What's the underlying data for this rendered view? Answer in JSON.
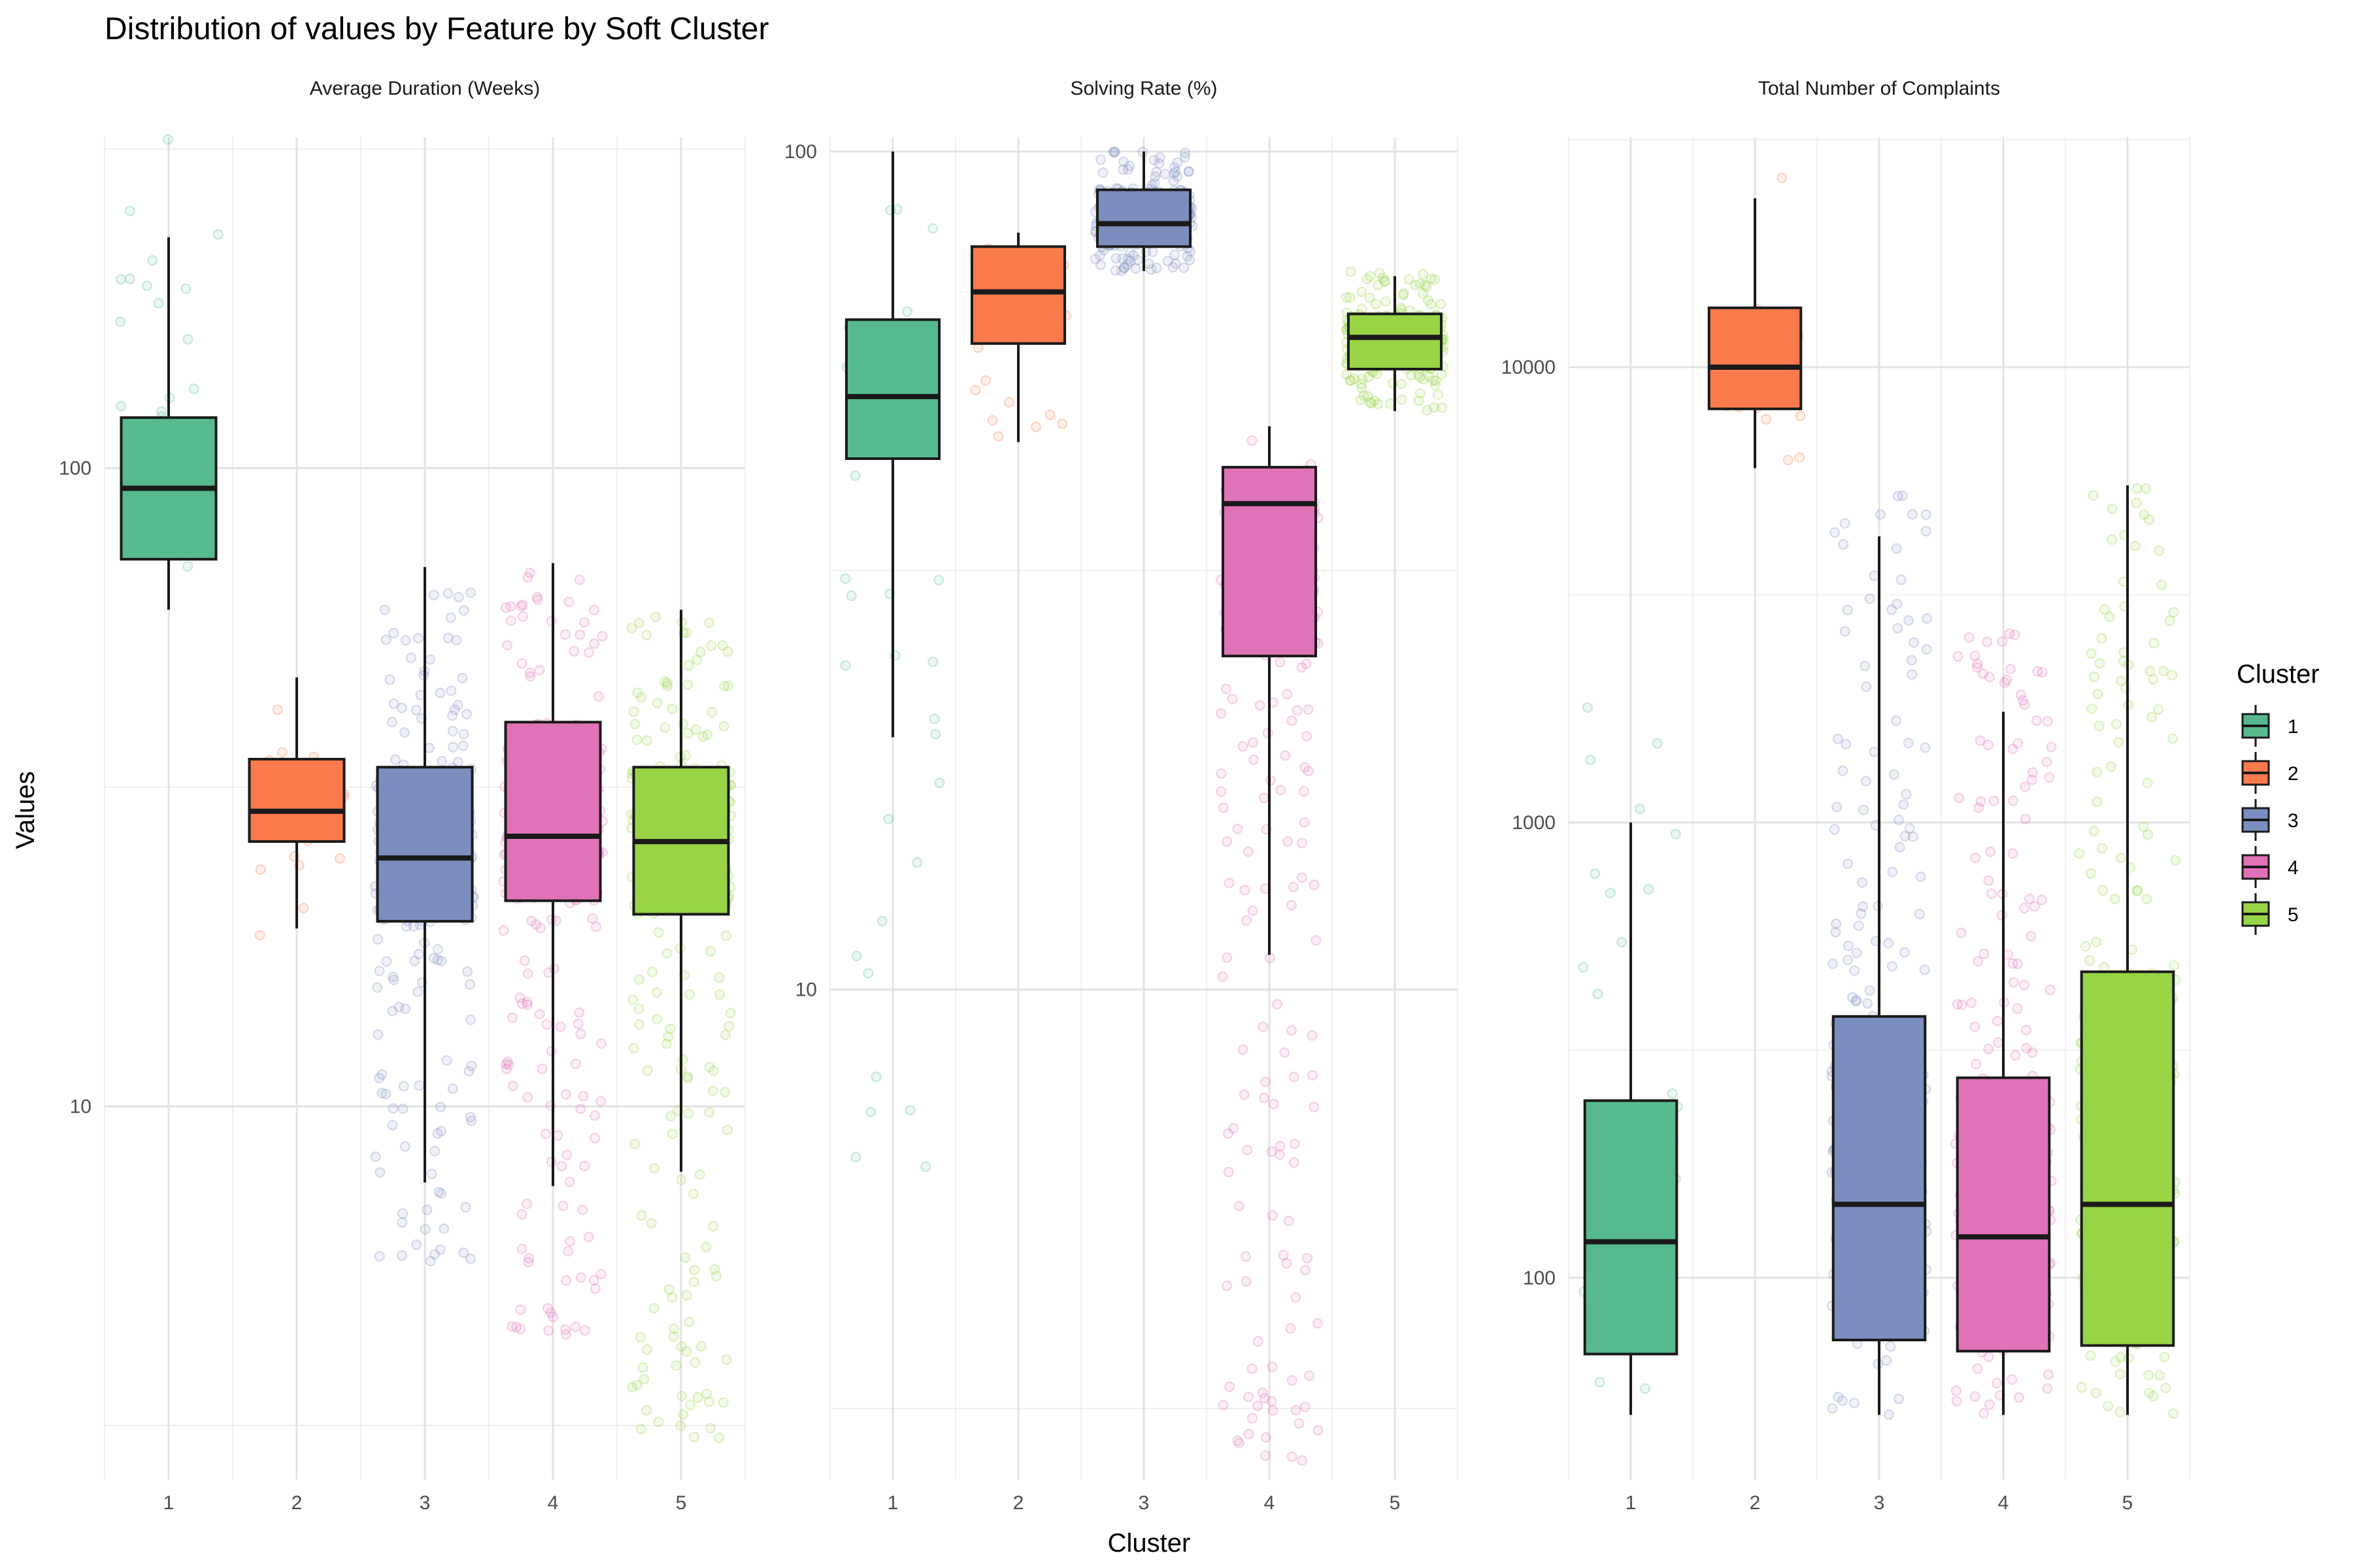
{
  "chart_data": {
    "type": "boxplot",
    "title": "Distribution of values by Feature by Soft Cluster",
    "xlabel": "Cluster",
    "ylabel": "Values",
    "categories": [
      "1",
      "2",
      "3",
      "4",
      "5"
    ],
    "y_scale": "log10",
    "grid": true,
    "legend": {
      "title": "Cluster",
      "position": "right",
      "entries": [
        "1",
        "2",
        "3",
        "4",
        "5"
      ]
    },
    "colors": [
      "#57BA8F",
      "#F97A4C",
      "#7C8DC0",
      "#E072B7",
      "#98D446"
    ],
    "facets": [
      {
        "name": "Average Duration (Weeks)",
        "ylim": [
          2.6,
          330
        ],
        "y_ticks": [
          10,
          100
        ],
        "y_tick_labels": [
          "10",
          "100"
        ],
        "boxes": [
          {
            "cluster": "1",
            "whisker_low": 60,
            "q1": 72,
            "median": 93,
            "q3": 120,
            "whisker_high": 230
          },
          {
            "cluster": "2",
            "whisker_low": 19,
            "q1": 26,
            "median": 29,
            "q3": 35,
            "whisker_high": 47
          },
          {
            "cluster": "3",
            "whisker_low": 7.6,
            "q1": 19.5,
            "median": 24.5,
            "q3": 34,
            "whisker_high": 70
          },
          {
            "cluster": "4",
            "whisker_low": 7.5,
            "q1": 21,
            "median": 26.5,
            "q3": 40,
            "whisker_high": 71
          },
          {
            "cluster": "5",
            "whisker_low": 7.9,
            "q1": 20,
            "median": 26,
            "q3": 34,
            "whisker_high": 60
          }
        ],
        "points": [
          {
            "cluster": "1",
            "n": 40,
            "min": 60,
            "max": 330
          },
          {
            "cluster": "2",
            "n": 30,
            "min": 18,
            "max": 48
          },
          {
            "cluster": "3",
            "n": 300,
            "min": 5.6,
            "max": 70
          },
          {
            "cluster": "4",
            "n": 300,
            "min": 4.3,
            "max": 71
          },
          {
            "cluster": "5",
            "n": 300,
            "min": 3,
            "max": 60
          }
        ]
      },
      {
        "name": "Solving Rate (%)",
        "ylim": [
          2.6,
          104
        ],
        "y_ticks": [
          10,
          100
        ],
        "y_tick_labels": [
          "10",
          "100"
        ],
        "boxes": [
          {
            "cluster": "1",
            "whisker_low": 20,
            "q1": 43,
            "median": 51,
            "q3": 63,
            "whisker_high": 100
          },
          {
            "cluster": "2",
            "whisker_low": 45,
            "q1": 59,
            "median": 68,
            "q3": 77,
            "whisker_high": 80
          },
          {
            "cluster": "3",
            "whisker_low": 72,
            "q1": 77,
            "median": 82,
            "q3": 90,
            "whisker_high": 100
          },
          {
            "cluster": "4",
            "whisker_low": 11,
            "q1": 25,
            "median": 38,
            "q3": 42,
            "whisker_high": 47
          },
          {
            "cluster": "5",
            "whisker_low": 49,
            "q1": 55,
            "median": 60,
            "q3": 64,
            "whisker_high": 71
          }
        ],
        "points": [
          {
            "cluster": "1",
            "n": 50,
            "min": 5.5,
            "max": 100
          },
          {
            "cluster": "2",
            "n": 25,
            "min": 42,
            "max": 80
          },
          {
            "cluster": "3",
            "n": 300,
            "min": 72,
            "max": 100
          },
          {
            "cluster": "4",
            "n": 300,
            "min": 2.7,
            "max": 47
          },
          {
            "cluster": "5",
            "n": 300,
            "min": 49,
            "max": 72
          }
        ]
      },
      {
        "name": "Total Number of Complaints",
        "ylim": [
          36,
          32000
        ],
        "y_ticks": [
          100,
          1000,
          10000
        ],
        "y_tick_labels": [
          "100",
          "1000",
          "10000"
        ],
        "boxes": [
          {
            "cluster": "1",
            "whisker_low": 50,
            "q1": 68,
            "median": 120,
            "q3": 245,
            "whisker_high": 1000
          },
          {
            "cluster": "2",
            "whisker_low": 6000,
            "q1": 8100,
            "median": 10000,
            "q3": 13500,
            "whisker_high": 23500
          },
          {
            "cluster": "3",
            "whisker_low": 50,
            "q1": 73,
            "median": 145,
            "q3": 375,
            "whisker_high": 4250
          },
          {
            "cluster": "4",
            "whisker_low": 50,
            "q1": 69,
            "median": 123,
            "q3": 275,
            "whisker_high": 1750
          },
          {
            "cluster": "5",
            "whisker_low": 50,
            "q1": 71,
            "median": 145,
            "q3": 470,
            "whisker_high": 5500
          }
        ],
        "points": [
          {
            "cluster": "1",
            "n": 50,
            "min": 50,
            "max": 1850
          },
          {
            "cluster": "2",
            "n": 25,
            "min": 6000,
            "max": 28000
          },
          {
            "cluster": "3",
            "n": 300,
            "min": 50,
            "max": 5500
          },
          {
            "cluster": "4",
            "n": 300,
            "min": 50,
            "max": 2650
          },
          {
            "cluster": "5",
            "n": 300,
            "min": 50,
            "max": 5500
          }
        ]
      }
    ]
  }
}
